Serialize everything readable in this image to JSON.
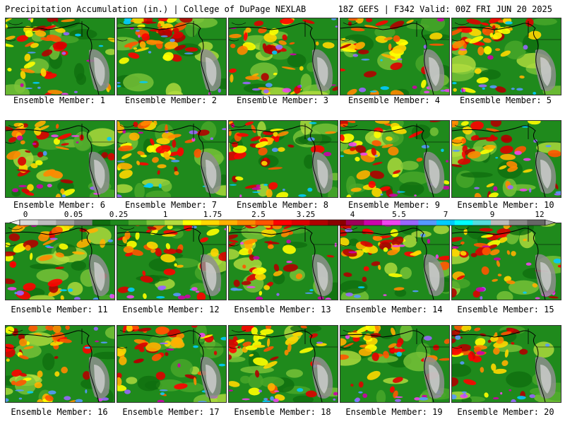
{
  "header": {
    "title_left": "Precipitation Accumulation (in.) | College of DuPage NEXLAB",
    "title_right": "18Z GEFS | F342 Valid: 00Z FRI JUN 20 2025"
  },
  "colorbar": {
    "ticks": [
      "0",
      "0.05",
      "0.25",
      "1",
      "1.75",
      "2.5",
      "3.25",
      "4",
      "5.5",
      "7",
      "9",
      "12"
    ],
    "colors": [
      "#d9d9d9",
      "#bdbdbd",
      "#9e9e9e",
      "#7e7e7e",
      "#0f6e0f",
      "#1f8a1c",
      "#4aa82a",
      "#7cc43a",
      "#b4dd3f",
      "#ffff00",
      "#ffd700",
      "#ffb000",
      "#ff8800",
      "#ff5500",
      "#ff0000",
      "#dd0000",
      "#b00000",
      "#8b0000",
      "#a0005a",
      "#cc00aa",
      "#ee44ee",
      "#9966ff",
      "#5599ff",
      "#00ccff",
      "#00ffff",
      "#55dddd",
      "#bbbbbb",
      "#888888",
      "#666666"
    ]
  },
  "panels": [
    {
      "label": "Ensemble Member: 1"
    },
    {
      "label": "Ensemble Member: 2"
    },
    {
      "label": "Ensemble Member: 3"
    },
    {
      "label": "Ensemble Member: 4"
    },
    {
      "label": "Ensemble Member: 5"
    },
    {
      "label": "Ensemble Member: 6"
    },
    {
      "label": "Ensemble Member: 7"
    },
    {
      "label": "Ensemble Member: 8"
    },
    {
      "label": "Ensemble Member: 9"
    },
    {
      "label": "Ensemble Member: 10"
    },
    {
      "label": "Ensemble Member: 11"
    },
    {
      "label": "Ensemble Member: 12"
    },
    {
      "label": "Ensemble Member: 13"
    },
    {
      "label": "Ensemble Member: 14"
    },
    {
      "label": "Ensemble Member: 15"
    },
    {
      "label": "Ensemble Member: 16"
    },
    {
      "label": "Ensemble Member: 17"
    },
    {
      "label": "Ensemble Member: 18"
    },
    {
      "label": "Ensemble Member: 19"
    },
    {
      "label": "Ensemble Member: 20"
    }
  ]
}
